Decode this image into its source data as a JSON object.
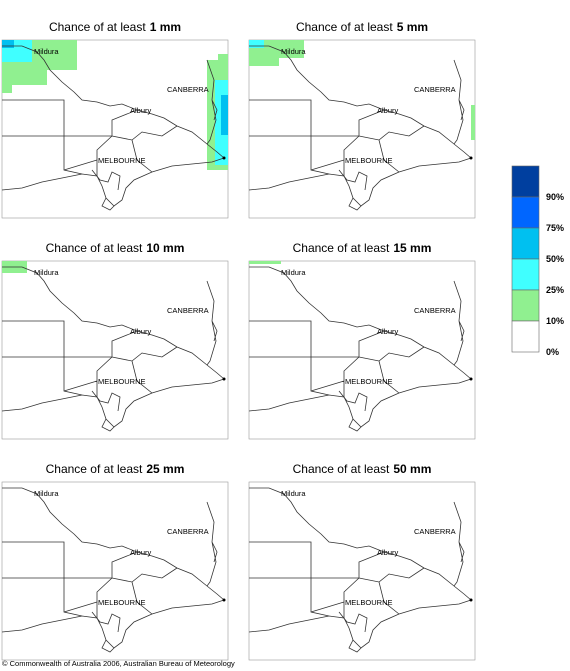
{
  "panels": [
    {
      "title": "Chance of at least",
      "threshold": "1 mm"
    },
    {
      "title": "Chance of at least",
      "threshold": "5 mm"
    },
    {
      "title": "Chance of at least",
      "threshold": "10 mm"
    },
    {
      "title": "Chance of at least",
      "threshold": "15 mm"
    },
    {
      "title": "Chance of at least",
      "threshold": "25 mm"
    },
    {
      "title": "Chance of at least",
      "threshold": "50 mm"
    }
  ],
  "places": [
    "Mildura",
    "CANBERRA",
    "Albury",
    "MELBOURNE"
  ],
  "legend": {
    "colors": [
      "#003f9f",
      "#0066ff",
      "#00c0f0",
      "#40ffff",
      "#90f090",
      "#ffffff"
    ],
    "labels": [
      "90%",
      "75%",
      "50%",
      "25%",
      "10%",
      "0%"
    ]
  },
  "footer": "© Commonwealth of Australia 2006, Australian Bureau of Meteorology"
}
